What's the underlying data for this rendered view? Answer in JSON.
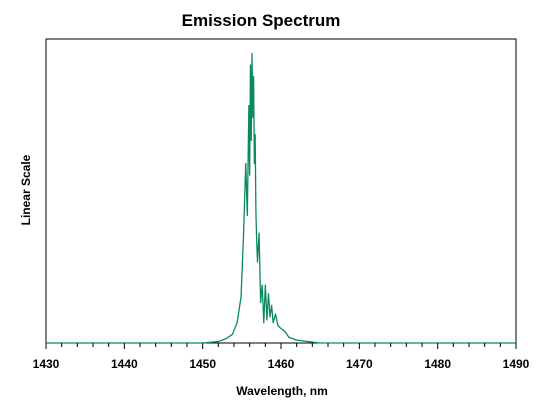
{
  "chart_data": {
    "type": "line",
    "title": "Emission Spectrum",
    "xlabel": "Wavelength, nm",
    "ylabel": "Linear Scale",
    "xlim": [
      1430,
      1490
    ],
    "ylim": [
      0,
      1.05
    ],
    "x_ticks": [
      "1430",
      "1440",
      "1450",
      "1460",
      "1470",
      "1480",
      "1490"
    ],
    "y_ticks_visible": false,
    "grid": false,
    "legend": "none",
    "series": [
      {
        "color": "#0a8a5a",
        "x": [
          1430,
          1450,
          1452,
          1453,
          1453.8,
          1454.4,
          1454.9,
          1455.2,
          1455.5,
          1455.7,
          1455.9,
          1456.0,
          1456.1,
          1456.2,
          1456.3,
          1456.4,
          1456.5,
          1456.6,
          1456.7,
          1456.8,
          1456.9,
          1457.0,
          1457.2,
          1457.4,
          1457.6,
          1457.8,
          1458.0,
          1458.2,
          1458.4,
          1458.6,
          1458.8,
          1459.0,
          1459.3,
          1459.6,
          1460.0,
          1460.5,
          1461.0,
          1462.0,
          1465.0,
          1490
        ],
        "y": [
          0,
          0,
          0.005,
          0.015,
          0.03,
          0.07,
          0.16,
          0.36,
          0.62,
          0.44,
          0.82,
          0.58,
          0.96,
          0.7,
          1.0,
          0.78,
          0.92,
          0.62,
          0.72,
          0.45,
          0.35,
          0.28,
          0.38,
          0.14,
          0.2,
          0.07,
          0.2,
          0.08,
          0.17,
          0.09,
          0.13,
          0.07,
          0.1,
          0.06,
          0.05,
          0.04,
          0.02,
          0.01,
          0.0,
          0
        ]
      }
    ]
  }
}
